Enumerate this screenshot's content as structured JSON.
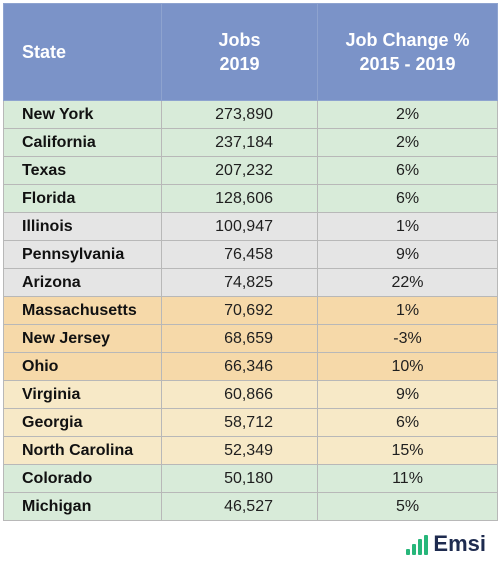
{
  "table": {
    "headers": {
      "state": "State",
      "jobs_line1": "Jobs",
      "jobs_line2": "2019",
      "change_line1": "Job Change %",
      "change_line2": "2015 - 2019"
    },
    "rows": [
      {
        "state": "New York",
        "jobs": "273,890",
        "change": "2%"
      },
      {
        "state": "California",
        "jobs": "237,184",
        "change": "2%"
      },
      {
        "state": "Texas",
        "jobs": "207,232",
        "change": "6%"
      },
      {
        "state": "Florida",
        "jobs": "128,606",
        "change": "6%"
      },
      {
        "state": "Illinois",
        "jobs": "100,947",
        "change": "1%"
      },
      {
        "state": "Pennsylvania",
        "jobs": "76,458",
        "change": "9%"
      },
      {
        "state": "Arizona",
        "jobs": "74,825",
        "change": "22%"
      },
      {
        "state": "Massachusetts",
        "jobs": "70,692",
        "change": "1%"
      },
      {
        "state": "New Jersey",
        "jobs": "68,659",
        "change": "-3%"
      },
      {
        "state": "Ohio",
        "jobs": "66,346",
        "change": "10%"
      },
      {
        "state": "Virginia",
        "jobs": "60,866",
        "change": "9%"
      },
      {
        "state": "Georgia",
        "jobs": "58,712",
        "change": "6%"
      },
      {
        "state": "North Carolina",
        "jobs": "52,349",
        "change": "15%"
      },
      {
        "state": "Colorado",
        "jobs": "50,180",
        "change": "11%"
      },
      {
        "state": "Michigan",
        "jobs": "46,527",
        "change": "5%"
      }
    ]
  },
  "colors": {
    "header": "#7b93c8",
    "green": "#d8ebd9",
    "gray": "#e5e5e5",
    "orange": "#f6d9a9",
    "cream": "#f7e9c7",
    "logo_bars": "#27b67a",
    "logo_text": "#1e2b4f"
  },
  "logo": {
    "text": "Emsi",
    "icon": "bar-chart-icon"
  }
}
